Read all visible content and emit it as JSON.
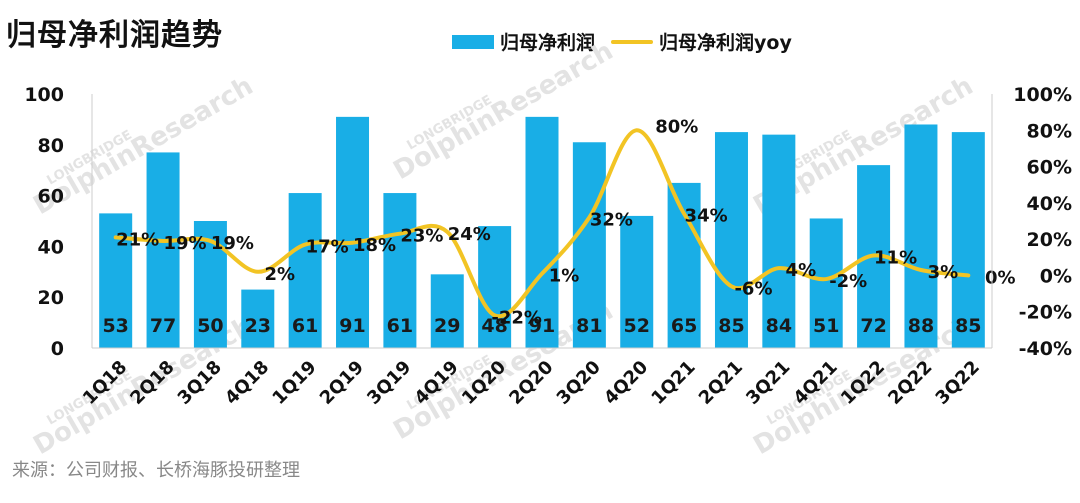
{
  "title": "归母净利润趋势",
  "source": "来源：公司财报、长桥海豚投研整理",
  "legend": {
    "bar_label": "归母净利润",
    "line_label": "归母净利润yoy"
  },
  "watermark": [
    "LONGBRIDGE",
    "DolphinResearch"
  ],
  "colors": {
    "bar": "#19aee6",
    "line": "#f2c424"
  },
  "chart_data": {
    "type": "bar",
    "title": "归母净利润趋势",
    "categories": [
      "1Q18",
      "2Q18",
      "3Q18",
      "4Q18",
      "1Q19",
      "2Q19",
      "3Q19",
      "4Q19",
      "1Q20",
      "2Q20",
      "3Q20",
      "4Q20",
      "1Q21",
      "2Q21",
      "3Q21",
      "4Q21",
      "1Q22",
      "2Q22",
      "3Q22"
    ],
    "series": [
      {
        "name": "归母净利润",
        "type": "bar",
        "axis": "left",
        "values": [
          53,
          77,
          50,
          23,
          61,
          91,
          61,
          29,
          48,
          91,
          81,
          52,
          65,
          85,
          84,
          51,
          72,
          88,
          85
        ],
        "labels": [
          "53",
          "77",
          "50",
          "23",
          "61",
          "91",
          "61",
          "29",
          "48",
          "91",
          "81",
          "52",
          "65",
          "85",
          "84",
          "51",
          "72",
          "88",
          "85"
        ]
      },
      {
        "name": "归母净利润yoy",
        "type": "line",
        "axis": "right",
        "values": [
          21,
          19,
          19,
          2,
          17,
          18,
          23,
          24,
          -22,
          1,
          32,
          80,
          34,
          -6,
          4,
          -2,
          11,
          3,
          0
        ],
        "labels": [
          "21%",
          "19%",
          "19%",
          "2%",
          "17%",
          "18%",
          "23%",
          "24%",
          "-22%",
          "1%",
          "32%",
          "80%",
          "34%",
          "-6%",
          "4%",
          "-2%",
          "11%",
          "3%",
          "0%"
        ]
      }
    ],
    "ylim": [
      0,
      100
    ],
    "y_ticks": [
      0,
      20,
      40,
      60,
      80,
      100
    ],
    "y_tick_labels": [
      "0",
      "20",
      "40",
      "60",
      "80",
      "100"
    ],
    "y2lim": [
      -40,
      100
    ],
    "y2_ticks": [
      -40,
      -20,
      0,
      20,
      40,
      60,
      80,
      100
    ],
    "y2_tick_labels": [
      "-40%",
      "-20%",
      "0%",
      "20%",
      "40%",
      "60%",
      "80%",
      "100%"
    ],
    "xlabel": "",
    "ylabel": "",
    "legend_position": "top-center",
    "grid": false
  }
}
